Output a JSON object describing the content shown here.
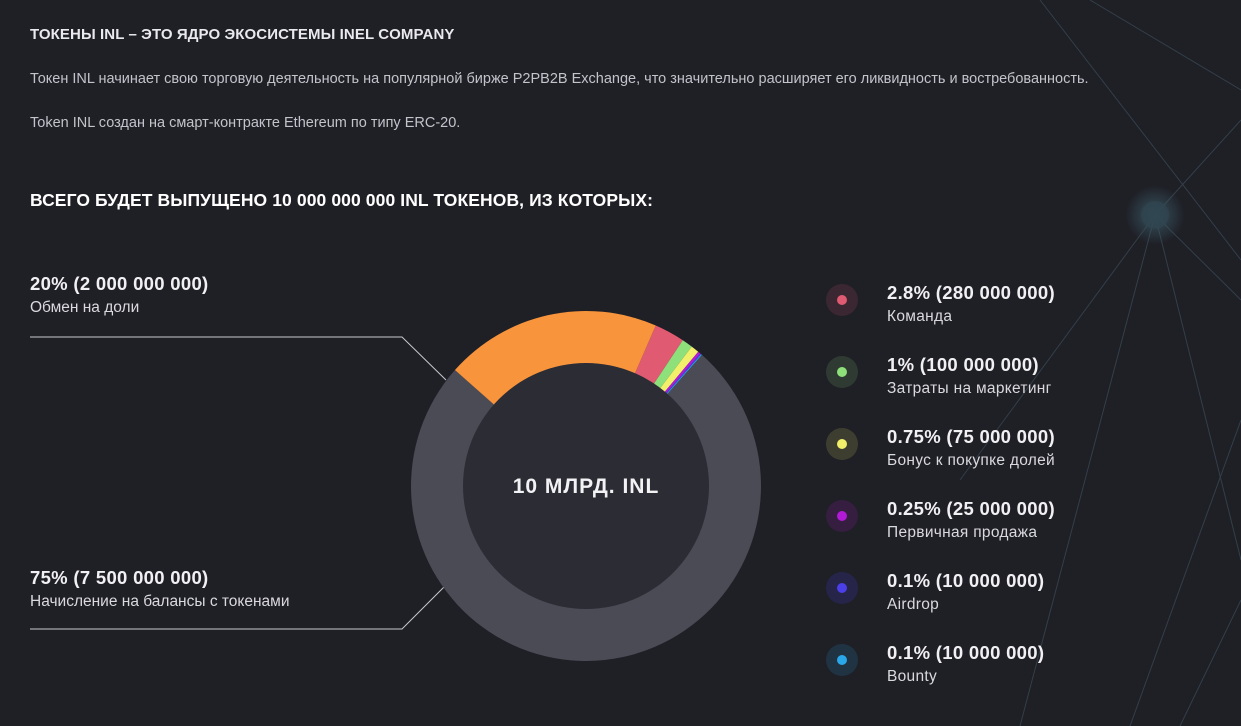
{
  "header": {
    "title": "ТОКЕНЫ INL – ЭТО ЯДРО ЭКОСИСТЕМЫ INEL COMPANY",
    "paragraph1": "Токен INL начинает свою торговую деятельность на популярной бирже P2PB2B Exchange, что значительно расширяет его ликвидность и востребованность.",
    "paragraph2": "Token INL создан на смарт-контракте Ethereum по типу ERC-20."
  },
  "heading": "ВСЕГО БУДЕТ ВЫПУЩЕНО 10 000 000 000 INL ТОКЕНОВ, ИЗ КОТОРЫХ:",
  "chart_data": {
    "type": "pie",
    "style": "donut",
    "center_label": "10 МЛРД. INL",
    "total": 10000000000,
    "slices": [
      {
        "label": "2.8% (280 000 000)",
        "name": "Команда",
        "percent": 2.8,
        "value": 280000000,
        "color": "#e05a72"
      },
      {
        "label": "1% (100 000 000)",
        "name": "Затраты на маркетинг",
        "percent": 1,
        "value": 100000000,
        "color": "#8ee07a"
      },
      {
        "label": "0.75% (75 000 000)",
        "name": "Бонус к покупке долей",
        "percent": 0.75,
        "value": 75000000,
        "color": "#f2ef6a"
      },
      {
        "label": "0.25% (25 000 000)",
        "name": "Первичная продажа",
        "percent": 0.25,
        "value": 25000000,
        "color": "#b21ad8"
      },
      {
        "label": "0.1% (10 000 000)",
        "name": "Airdrop",
        "percent": 0.1,
        "value": 10000000,
        "color": "#4a3fe8"
      },
      {
        "label": "0.1% (10 000 000)",
        "name": "Bounty",
        "percent": 0.1,
        "value": 10000000,
        "color": "#2aa7e8"
      },
      {
        "label": "75% (7 500 000 000)",
        "name": "Начисление на балансы с токенами",
        "percent": 75,
        "value": 7500000000,
        "color": "#4b4b56"
      },
      {
        "label": "20% (2 000 000 000)",
        "name": "Обмен на доли",
        "percent": 20,
        "value": 2000000000,
        "color": "#f7943c"
      }
    ]
  }
}
